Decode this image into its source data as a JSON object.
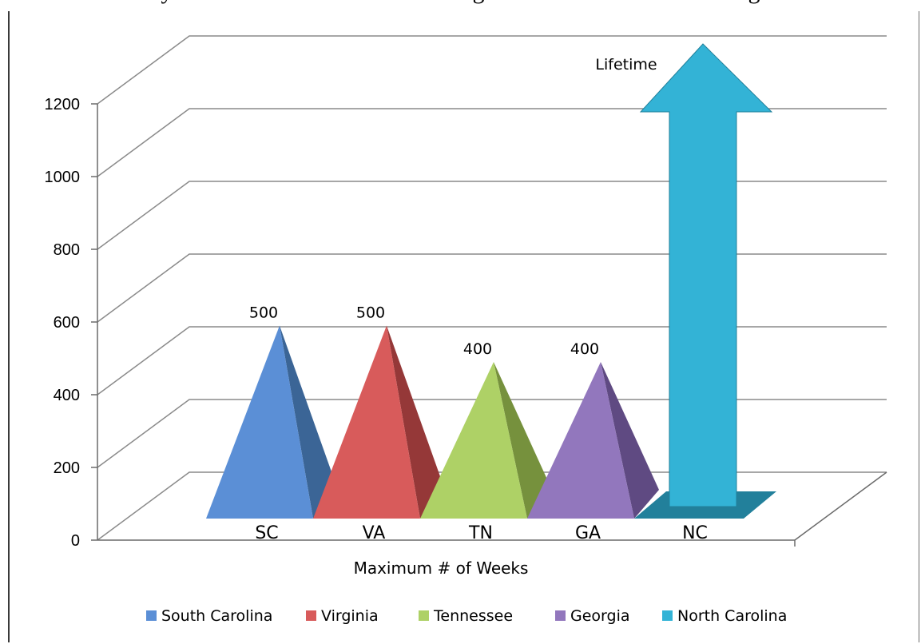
{
  "top_caption": "…y … … … … … … … … … …g… … … … … … … … …g…",
  "chart_data": {
    "type": "bar",
    "bar_shape": "pyramid",
    "title": "",
    "xlabel": "Maximum # of Weeks",
    "ylabel": "",
    "ylim": [
      0,
      1200
    ],
    "yticks": [
      0,
      200,
      400,
      600,
      800,
      1000,
      1200
    ],
    "grid": true,
    "legend_position": "bottom",
    "categories": [
      "SC",
      "VA",
      "TN",
      "GA",
      "NC"
    ],
    "series": [
      {
        "name": "South Carolina",
        "category": "SC",
        "value": 500,
        "label": "500",
        "color": "#5b8fd6",
        "dark": "#3b6596"
      },
      {
        "name": "Virginia",
        "category": "VA",
        "value": 500,
        "label": "500",
        "color": "#d85b5b",
        "dark": "#953838"
      },
      {
        "name": "Tennessee",
        "category": "TN",
        "value": 400,
        "label": "400",
        "color": "#aed166",
        "dark": "#76913d"
      },
      {
        "name": "Georgia",
        "category": "GA",
        "value": 400,
        "label": "400",
        "color": "#9277bd",
        "dark": "#5f4a82"
      },
      {
        "name": "North Carolina",
        "category": "NC",
        "value": null,
        "label": "Lifetime",
        "color": "#33b3d6",
        "dark": "#22809b"
      }
    ]
  }
}
